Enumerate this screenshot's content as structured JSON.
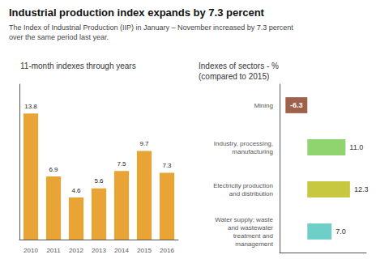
{
  "title": "Industrial production index expands by 7.3 percent",
  "subtitle": "The Index of Industrial Production (IIP) in January – November increased by 7.3 percent\nover the same period last year.",
  "chart_data": [
    {
      "type": "bar",
      "title": "11-month indexes through years",
      "categories": [
        "2010",
        "2011",
        "2012",
        "2013",
        "2014",
        "2015",
        "2016"
      ],
      "values": [
        13.8,
        6.9,
        4.6,
        5.6,
        7.5,
        9.7,
        7.3
      ],
      "color": "#E8A435",
      "ylim": [
        0,
        17
      ],
      "grid": false,
      "data_labels": true,
      "tick_labels": "x"
    },
    {
      "type": "bar",
      "title": "Indexes of sectors - %\n(compared to 2015)",
      "orientation": "horizontal",
      "categories": [
        "Mining",
        "Industry, processing,\nmanufacturing",
        "Electricity production\nand distribution",
        "Water supply; waste\nand wastewater\ntreatment and\nmanagement"
      ],
      "values": [
        -6.3,
        11.0,
        12.3,
        7.0
      ],
      "value_labels": [
        "-6.3",
        "11.0",
        "12.3",
        "7.0"
      ],
      "colors": [
        "#A0614A",
        "#90D470",
        "#C8C840",
        "#6ECEC8"
      ],
      "xlim": [
        -8,
        17
      ],
      "grid": false,
      "data_labels": true,
      "tick_labels": "y"
    }
  ]
}
